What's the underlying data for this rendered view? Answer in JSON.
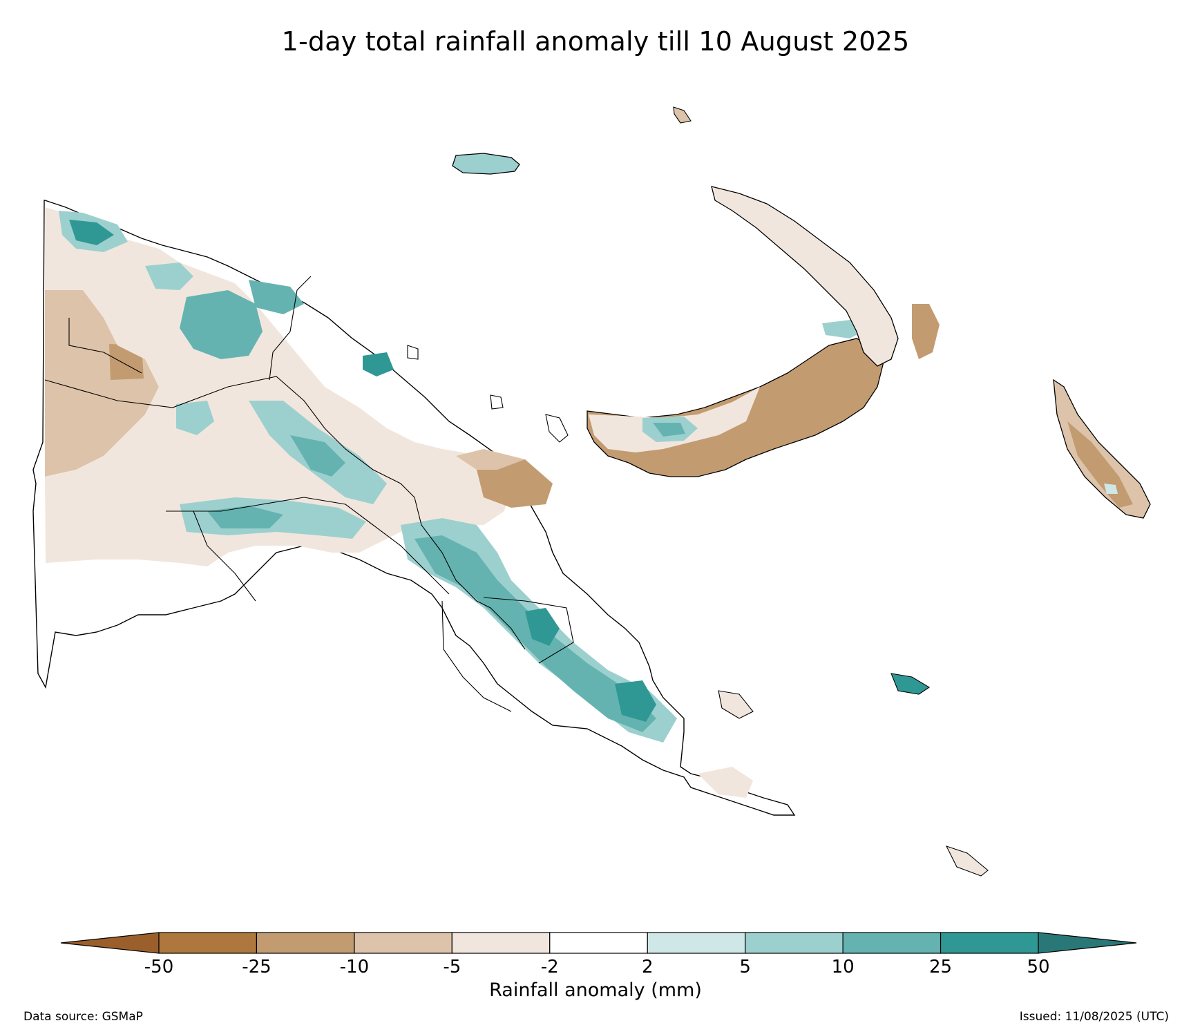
{
  "title": "1-day total rainfall anomaly till 10 August 2025",
  "legend": {
    "label": "Rainfall anomaly (mm)",
    "ticks": [
      "-50",
      "-25",
      "-10",
      "-5",
      "-2",
      "2",
      "5",
      "10",
      "25",
      "50"
    ],
    "bins": [
      {
        "range": "< -50",
        "color": "#9b5f2c"
      },
      {
        "range": "-50 to -25",
        "color": "#ad773d"
      },
      {
        "range": "-25 to -10",
        "color": "#c39b70"
      },
      {
        "range": "-10 to -5",
        "color": "#dcc3aa"
      },
      {
        "range": "-5 to -2",
        "color": "#f1e6dd"
      },
      {
        "range": "-2 to 2",
        "color": "#ffffff"
      },
      {
        "range": "2 to 5",
        "color": "#cfe7e6"
      },
      {
        "range": "5 to 10",
        "color": "#9cd0ce"
      },
      {
        "range": "10 to 25",
        "color": "#64b3b1"
      },
      {
        "range": "25 to 50",
        "color": "#2f9894"
      },
      {
        "range": "> 50",
        "color": "#297877"
      }
    ]
  },
  "footer": {
    "source": "Data source: GSMaP",
    "issued": "Issued: 11/08/2025 (UTC)"
  }
}
